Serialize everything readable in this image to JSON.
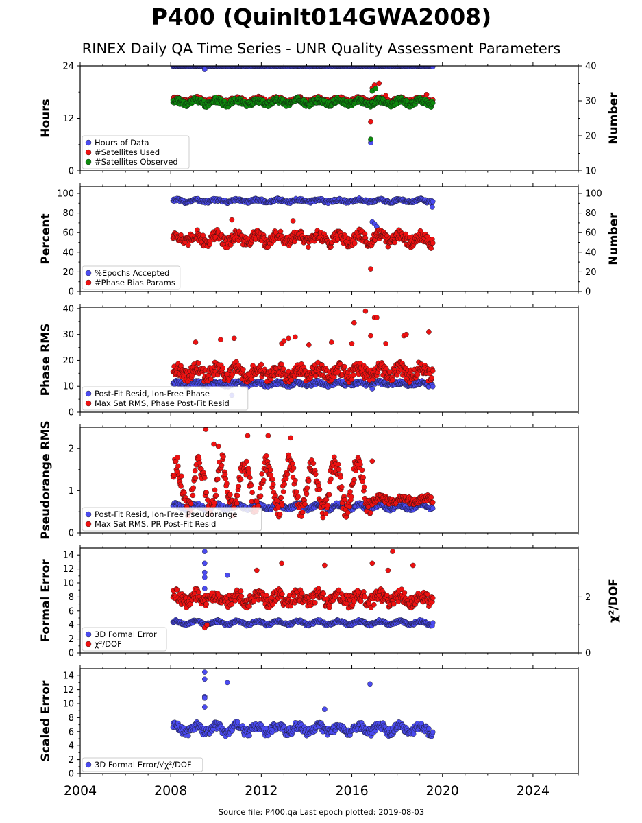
{
  "title": "P400 (Quinlt014GWA2008)",
  "subtitle": "RINEX Daily QA Time Series - UNR Quality Assessment Parameters",
  "footer": "Source file: P400.qa Last epoch plotted: 2019-08-03",
  "colors": {
    "blue": "#4b4bf0",
    "red": "#ee1111",
    "green": "#0d8a0d"
  },
  "chart_data": [
    {
      "type": "scatter",
      "xlim": [
        2004,
        2026
      ],
      "xticks": [
        2004,
        2008,
        2012,
        2016,
        2020,
        2024
      ],
      "ylabel": "Hours",
      "ylim": [
        0,
        24
      ],
      "yticks": [
        0,
        12,
        24
      ],
      "y2label": "Number",
      "y2lim": [
        10,
        40
      ],
      "y2ticks": [
        10,
        20,
        30,
        40
      ],
      "legend": "lower-left",
      "series": [
        {
          "name": "Hours of Data",
          "color": "blue",
          "axis": "left",
          "start": 2008.1,
          "end": 2019.59,
          "step": 0.025,
          "base": 23.9,
          "amp": 0.05,
          "noise": 0.05,
          "outliers": [
            [
              2009.5,
              23.2
            ],
            [
              2016.83,
              6.4
            ]
          ]
        },
        {
          "name": "#Satellites Used",
          "color": "red",
          "axis": "right",
          "start": 2008.1,
          "end": 2019.59,
          "step": 0.025,
          "base": 30.2,
          "amp": 0.5,
          "noise": 0.6,
          "outliers": [
            [
              2016.83,
              24
            ],
            [
              2016.9,
              33.6
            ],
            [
              2017.0,
              34.5
            ],
            [
              2017.2,
              35
            ],
            [
              2017.5,
              31.5
            ],
            [
              2019.3,
              31.8
            ],
            [
              2009.7,
              30.5
            ]
          ]
        },
        {
          "name": "#Satellites Observed",
          "color": "green",
          "axis": "right",
          "start": 2008.1,
          "end": 2019.59,
          "step": 0.025,
          "base": 29.6,
          "amp": 0.6,
          "noise": 0.8,
          "outliers": [
            [
              2016.83,
              19
            ],
            [
              2016.9,
              32.8
            ],
            [
              2017.05,
              33.5
            ]
          ]
        }
      ]
    },
    {
      "type": "scatter",
      "xlim": [
        2004,
        2026
      ],
      "xticks": [
        2004,
        2008,
        2012,
        2016,
        2020,
        2024
      ],
      "ylabel": "Percent",
      "ylim": [
        0,
        107
      ],
      "yticks": [
        0,
        20,
        40,
        60,
        80,
        100
      ],
      "y2label": "Number",
      "y2lim": [
        0,
        107
      ],
      "y2ticks": [
        0,
        20,
        40,
        60,
        80,
        100
      ],
      "legend": "lower-left",
      "series": [
        {
          "name": "%Epochs Accepted",
          "color": "blue",
          "axis": "left",
          "start": 2008.1,
          "end": 2019.59,
          "step": 0.025,
          "base": 92.5,
          "amp": 1.2,
          "noise": 1.5,
          "outliers": [
            [
              2016.9,
              71
            ],
            [
              2017.0,
              69
            ],
            [
              2017.1,
              66
            ],
            [
              2019.55,
              86
            ]
          ]
        },
        {
          "name": "#Phase Bias Params",
          "color": "red",
          "axis": "right",
          "start": 2008.1,
          "end": 2019.59,
          "step": 0.025,
          "base": 54,
          "amp": 4,
          "noise": 5.5,
          "outliers": [
            [
              2016.83,
              23
            ],
            [
              2010.7,
              73
            ],
            [
              2013.4,
              72
            ],
            [
              2019.5,
              44
            ]
          ]
        }
      ]
    },
    {
      "type": "scatter",
      "xlim": [
        2004,
        2026
      ],
      "xticks": [
        2004,
        2008,
        2012,
        2016,
        2020,
        2024
      ],
      "ylabel": "Phase RMS",
      "ylim": [
        0,
        40.5
      ],
      "yticks": [
        0,
        10,
        20,
        30,
        40
      ],
      "legend": "lower-left",
      "series": [
        {
          "name": "Post-Fit Resid, Ion-Free Phase",
          "color": "blue",
          "axis": "left",
          "start": 2008.1,
          "end": 2019.59,
          "step": 0.025,
          "base": 11,
          "amp": 0.5,
          "noise": 0.8,
          "outliers": [
            [
              2010.7,
              6.5
            ],
            [
              2016.9,
              9
            ]
          ]
        },
        {
          "name": "Max Sat RMS, Phase Post-Fit Resid",
          "color": "red",
          "axis": "left",
          "start": 2008.1,
          "end": 2019.59,
          "step": 0.025,
          "base": 15.5,
          "amp": 1.5,
          "noise": 2.5,
          "outliers": [
            [
              2009.1,
              27
            ],
            [
              2010.2,
              28
            ],
            [
              2010.8,
              28.5
            ],
            [
              2012.9,
              26.5
            ],
            [
              2013.0,
              27.5
            ],
            [
              2013.2,
              28.5
            ],
            [
              2013.5,
              29
            ],
            [
              2014.1,
              26
            ],
            [
              2015.1,
              27
            ],
            [
              2016.0,
              26.5
            ],
            [
              2016.1,
              34.5
            ],
            [
              2016.6,
              39
            ],
            [
              2016.83,
              29.5
            ],
            [
              2017.0,
              36.5
            ],
            [
              2017.1,
              36.5
            ],
            [
              2017.5,
              26.5
            ],
            [
              2018.3,
              29.5
            ],
            [
              2018.4,
              30
            ],
            [
              2019.4,
              31
            ]
          ]
        }
      ]
    },
    {
      "type": "scatter",
      "xlim": [
        2004,
        2026
      ],
      "xticks": [
        2004,
        2008,
        2012,
        2016,
        2020,
        2024
      ],
      "ylabel": "Pseudorange RMS",
      "ylim": [
        0,
        2.5
      ],
      "yticks": [
        0,
        1,
        2
      ],
      "legend": "lower-left",
      "series": [
        {
          "name": "Post-Fit Resid, Ion-Free Pseudorange",
          "color": "blue",
          "axis": "left",
          "start": 2008.1,
          "end": 2019.59,
          "step": 0.025,
          "base": 0.62,
          "amp": 0.05,
          "noise": 0.05,
          "outliers": []
        },
        {
          "name": "Max Sat RMS, PR Post-Fit Resid",
          "color": "red",
          "axis": "left",
          "start": 2008.1,
          "end": 2019.59,
          "step": 0.025,
          "base": 1.1,
          "amp": 0.55,
          "noise": 0.22,
          "period": 1.0,
          "quietFrom": 2016.85,
          "outliers": [
            [
              2009.55,
              2.45
            ],
            [
              2011.4,
              2.3
            ],
            [
              2012.3,
              2.3
            ],
            [
              2013.3,
              2.25
            ],
            [
              2009.9,
              2.1
            ],
            [
              2010.1,
              2.05
            ],
            [
              2016.9,
              1.7
            ]
          ]
        }
      ]
    },
    {
      "type": "scatter",
      "xlim": [
        2004,
        2026
      ],
      "xticks": [
        2004,
        2008,
        2012,
        2016,
        2020,
        2024
      ],
      "ylabel": "Formal Error",
      "ylim": [
        0,
        15
      ],
      "yticks": [
        0,
        2,
        4,
        6,
        8,
        10,
        12,
        14
      ],
      "y2label": "χ²/DOF",
      "y2lim": [
        0,
        3.75
      ],
      "y2ticks": [
        0,
        2
      ],
      "legend": "lower-left",
      "series": [
        {
          "name": "3D Formal Error",
          "color": "blue",
          "axis": "left",
          "start": 2008.1,
          "end": 2019.59,
          "step": 0.025,
          "base": 4.3,
          "amp": 0.25,
          "noise": 0.2,
          "outliers": [
            [
              2009.5,
              14.5
            ],
            [
              2009.5,
              12.8
            ],
            [
              2009.5,
              11.5
            ],
            [
              2009.5,
              10.8
            ],
            [
              2009.5,
              9.2
            ],
            [
              2010.5,
              11.1
            ]
          ]
        },
        {
          "name": "χ²/DOF",
          "color": "red",
          "axis": "left",
          "start": 2008.1,
          "end": 2019.59,
          "step": 0.025,
          "base": 7.8,
          "amp": 0.5,
          "noise": 0.9,
          "outliers": [
            [
              2009.5,
              3.6
            ],
            [
              2009.6,
              4.0
            ],
            [
              2011.8,
              11.8
            ],
            [
              2012.9,
              12.8
            ],
            [
              2014.8,
              12.5
            ],
            [
              2016.9,
              12.8
            ],
            [
              2017.8,
              14.5
            ],
            [
              2018.7,
              12.5
            ],
            [
              2017.6,
              11.8
            ]
          ]
        }
      ]
    },
    {
      "type": "scatter",
      "xlim": [
        2004,
        2026
      ],
      "xticks": [
        2004,
        2008,
        2012,
        2016,
        2020,
        2024
      ],
      "ylabel": "Scaled Error",
      "ylim": [
        0,
        15
      ],
      "yticks": [
        0,
        2,
        4,
        6,
        8,
        10,
        12,
        14
      ],
      "legend": "lower-left",
      "series": [
        {
          "name": "3D Formal Error/√χ²/DOF",
          "color": "blue",
          "axis": "left",
          "start": 2008.1,
          "end": 2019.59,
          "step": 0.025,
          "base": 6.4,
          "amp": 0.5,
          "noise": 0.6,
          "outliers": [
            [
              2009.5,
              14.5
            ],
            [
              2009.5,
              13.5
            ],
            [
              2009.5,
              11.0
            ],
            [
              2009.5,
              10.8
            ],
            [
              2009.5,
              9.5
            ],
            [
              2010.5,
              13.0
            ],
            [
              2016.8,
              12.8
            ],
            [
              2014.8,
              9.2
            ]
          ]
        }
      ]
    }
  ]
}
